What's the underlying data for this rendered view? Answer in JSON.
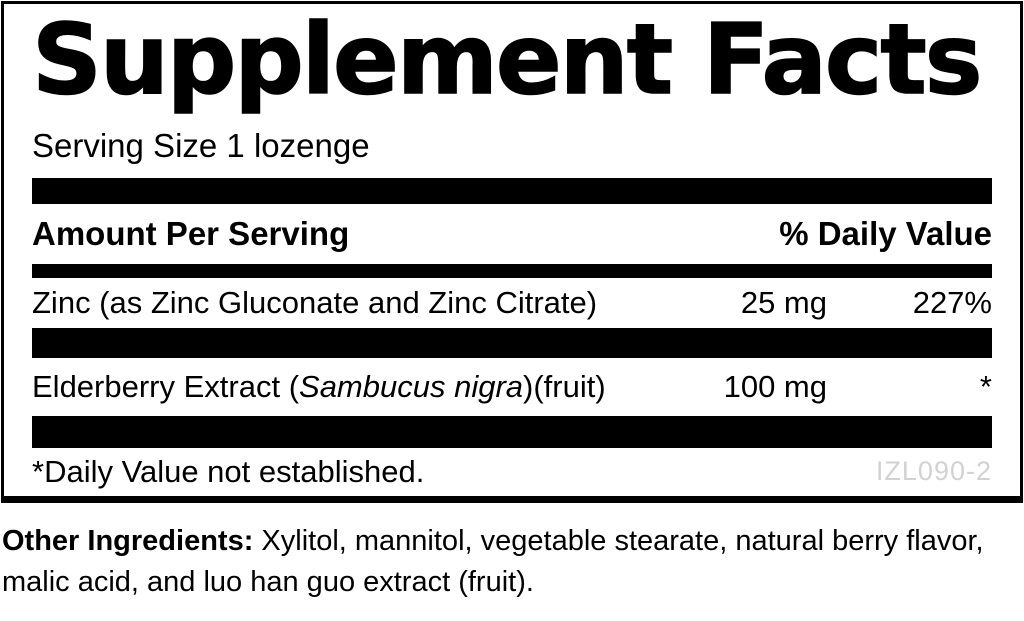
{
  "label": {
    "title": "Supplement Facts",
    "serving_size": "Serving Size 1 lozenge",
    "header": {
      "amount_col": "Amount Per Serving",
      "dv_col": "% Daily Value"
    },
    "rows": [
      {
        "name": "Zinc (as Zinc Gluconate and Zinc Citrate)",
        "amount": "25 mg",
        "daily_value": "227%"
      },
      {
        "name_prefix": "Elderberry Extract (",
        "name_italic": "Sambucus nigra",
        "name_suffix": ")(fruit)",
        "amount": "100 mg",
        "daily_value": "*"
      }
    ],
    "footnote": "*Daily Value not established.",
    "product_code": "IZL090-2"
  },
  "other_ingredients": {
    "label": "Other Ingredients:",
    "text": "Xylitol, mannitol, vegetable stearate, natural berry flavor, malic acid, and luo han guo extract (fruit)."
  },
  "colors": {
    "text": "#000000",
    "background": "#ffffff",
    "bars": "#000000",
    "product_code": "#d2d2d2"
  }
}
